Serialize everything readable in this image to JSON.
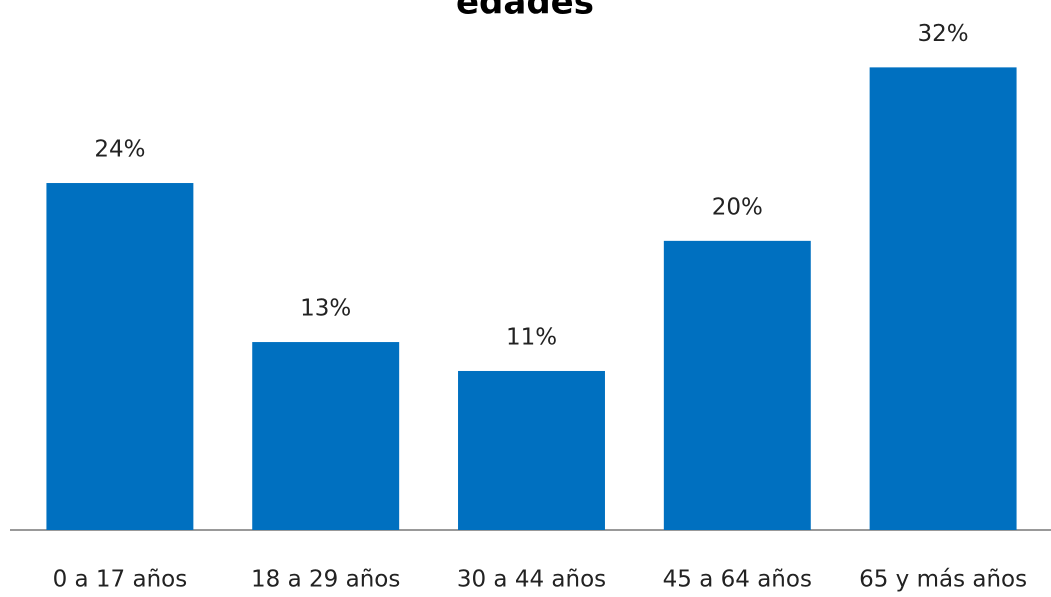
{
  "chart_data": {
    "type": "bar",
    "title": "edades",
    "categories": [
      "0 a 17 años",
      "18 a 29 años",
      "30 a 44 años",
      "45 a 64 años",
      "65 y más años"
    ],
    "values": [
      24,
      13,
      11,
      20,
      32
    ],
    "value_labels": [
      "24%",
      "13%",
      "11%",
      "20%",
      "32%"
    ],
    "color": "#0070c0",
    "ylim": [
      0,
      35
    ]
  }
}
